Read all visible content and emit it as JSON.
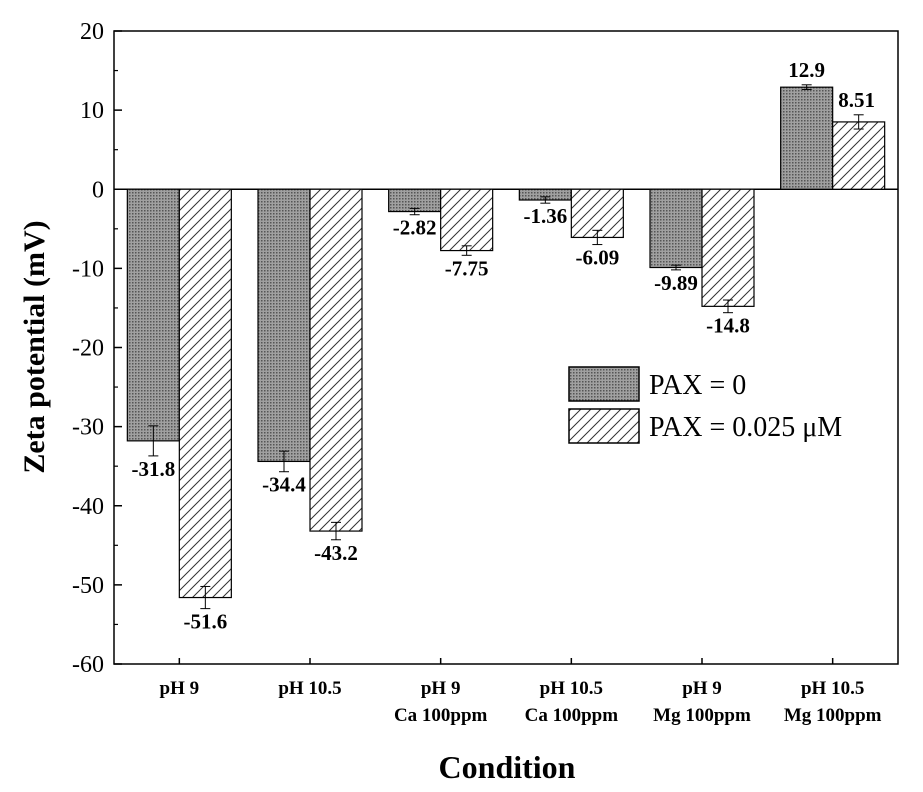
{
  "chart_data": {
    "type": "bar",
    "title": "",
    "xlabel": "Condition",
    "ylabel": "Zeta potential (mV)",
    "ylim": [
      -60,
      20
    ],
    "yticks": [
      20,
      10,
      0,
      -10,
      -20,
      -30,
      -40,
      -50,
      -60
    ],
    "categories": [
      [
        "pH 9"
      ],
      [
        "pH 10.5"
      ],
      [
        "pH 9",
        "Ca 100ppm"
      ],
      [
        "pH 10.5",
        "Ca 100ppm"
      ],
      [
        "pH 9",
        "Mg 100ppm"
      ],
      [
        "pH 10.5",
        "Mg 100ppm"
      ]
    ],
    "series": [
      {
        "name": "PAX = 0",
        "pattern": "dotted",
        "color": "#8c8c8c",
        "values": [
          -31.8,
          -34.4,
          -2.82,
          -1.36,
          -9.89,
          12.9
        ],
        "labels": [
          "-31.8",
          "-34.4",
          "-2.82",
          "-1.36",
          "-9.89",
          "12.9"
        ],
        "errors": [
          1.9,
          1.3,
          0.4,
          0.4,
          0.3,
          0.3
        ]
      },
      {
        "name": "PAX = 0.025 μM",
        "pattern": "hatched",
        "color": "#ffffff",
        "values": [
          -51.6,
          -43.2,
          -7.75,
          -6.09,
          -14.8,
          8.51
        ],
        "labels": [
          "-51.6",
          "-43.2",
          "-7.75",
          "-6.09",
          "-14.8",
          "8.51"
        ],
        "errors": [
          1.4,
          1.1,
          0.6,
          0.9,
          0.8,
          0.9
        ]
      }
    ],
    "legend_position": "right-middle"
  }
}
